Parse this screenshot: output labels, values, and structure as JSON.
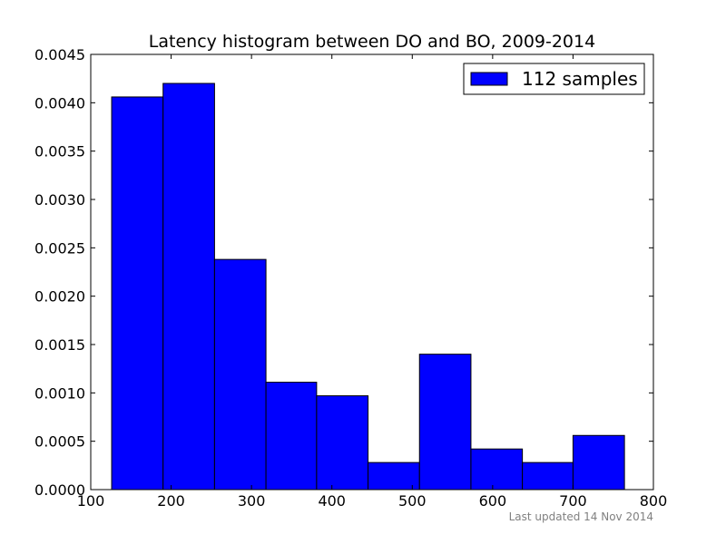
{
  "chart_data": {
    "type": "bar",
    "title": "Latency histogram between DO and BO, 2009-2014",
    "xlabel": "",
    "ylabel": "",
    "xlim": [
      100,
      800
    ],
    "ylim": [
      0,
      0.0045
    ],
    "xticks": [
      100,
      200,
      300,
      400,
      500,
      600,
      700,
      800
    ],
    "xtick_labels": [
      "100",
      "200",
      "300",
      "400",
      "500",
      "600",
      "700",
      "800"
    ],
    "yticks": [
      0,
      0.0005,
      0.001,
      0.0015,
      0.002,
      0.0025,
      0.003,
      0.0035,
      0.004,
      0.0045
    ],
    "ytick_labels": [
      "0.0000",
      "0.0005",
      "0.0010",
      "0.0015",
      "0.0020",
      "0.0025",
      "0.0030",
      "0.0035",
      "0.0040",
      "0.0045"
    ],
    "grid": false,
    "legend_position": "top-right",
    "series": [
      {
        "name": "112 samples",
        "color": "#0000ff",
        "bin_edges": [
          126,
          190,
          254,
          318,
          381,
          445,
          509,
          573,
          637,
          700,
          764
        ],
        "values": [
          0.00406,
          0.0042,
          0.00238,
          0.00111,
          0.00097,
          0.00028,
          0.0014,
          0.00042,
          0.00028,
          0.00056
        ]
      }
    ]
  },
  "footnote": "Last updated 14 Nov 2014"
}
